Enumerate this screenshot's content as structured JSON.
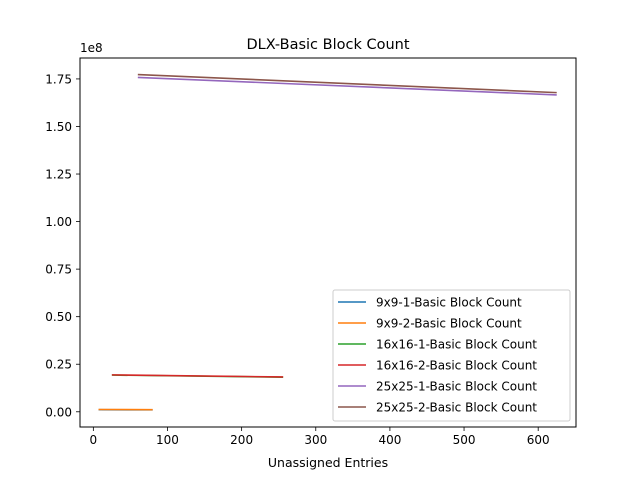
{
  "chart_data": {
    "type": "line",
    "title": "DLX-Basic Block Count",
    "xlabel": "Unassigned Entries",
    "ylabel": "",
    "offset_label": "1e8",
    "xlim": [
      -18,
      651
    ],
    "ylim": [
      -8000000,
      186000000
    ],
    "xticks": [
      0,
      100,
      200,
      300,
      400,
      500,
      600
    ],
    "xtick_labels": [
      "0",
      "100",
      "200",
      "300",
      "400",
      "500",
      "600"
    ],
    "yticks": [
      0,
      25000000,
      50000000,
      75000000,
      100000000,
      125000000,
      150000000,
      175000000
    ],
    "ytick_labels": [
      "0.00",
      "0.25",
      "0.50",
      "0.75",
      "1.00",
      "1.25",
      "1.50",
      "1.75"
    ],
    "grid": false,
    "legend_position": "lower-right",
    "series": [
      {
        "name": "9x9-1-Basic Block Count",
        "color": "#1f77b4",
        "x": [
          7,
          80
        ],
        "y": [
          1100000,
          1000000
        ]
      },
      {
        "name": "9x9-2-Basic Block Count",
        "color": "#ff7f0e",
        "x": [
          7,
          80
        ],
        "y": [
          1200000,
          1100000
        ]
      },
      {
        "name": "16x16-1-Basic Block Count",
        "color": "#2ca02c",
        "x": [
          25,
          256
        ],
        "y": [
          19300000,
          18200000
        ]
      },
      {
        "name": "16x16-2-Basic Block Count",
        "color": "#d62728",
        "x": [
          25,
          256
        ],
        "y": [
          19400000,
          18300000
        ]
      },
      {
        "name": "25x25-1-Basic Block Count",
        "color": "#9467bd",
        "x": [
          60,
          625
        ],
        "y": [
          175800000,
          166600000
        ]
      },
      {
        "name": "25x25-2-Basic Block Count",
        "color": "#8c564b",
        "x": [
          60,
          625
        ],
        "y": [
          177300000,
          167800000
        ]
      }
    ]
  }
}
